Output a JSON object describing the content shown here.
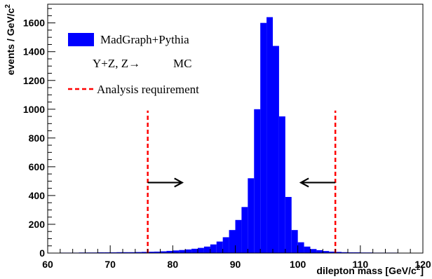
{
  "chart_data": {
    "type": "bar",
    "xlabel": "dilepton mass [GeV/c",
    "xlabel_sup": "2",
    "xlabel_end": "]",
    "ylabel": "events / GeV/c",
    "ylabel_sup": "2",
    "xlim": [
      60,
      120
    ],
    "ylim": [
      0,
      1730
    ],
    "x_ticks": [
      "60",
      "70",
      "80",
      "90",
      "100",
      "110",
      "120"
    ],
    "y_ticks": [
      "0",
      "200",
      "400",
      "600",
      "800",
      "1000",
      "1200",
      "1400",
      "1600"
    ],
    "bin_width": 1,
    "bin_start": 60,
    "values": [
      2,
      2,
      3,
      3,
      3,
      4,
      4,
      4,
      5,
      5,
      5,
      6,
      6,
      6,
      7,
      8,
      9,
      10,
      12,
      15,
      18,
      21,
      25,
      30,
      36,
      45,
      60,
      80,
      110,
      160,
      230,
      320,
      520,
      1000,
      1600,
      1640,
      1440,
      950,
      390,
      160,
      75,
      45,
      28,
      20,
      14,
      10,
      8,
      6,
      5,
      5,
      4,
      4,
      3,
      3,
      3,
      3,
      2,
      2,
      2,
      2
    ],
    "series_name": "MadGraph+Pythia",
    "series_color": "#0000ff",
    "legend_line2": "Y+Z, Z→",
    "legend_line2_mc": "MC",
    "cut_name": "Analysis requirement",
    "cut_color": "#ff0000",
    "cuts": [
      76,
      106
    ],
    "arrow_level": 490,
    "arrows": [
      {
        "from": 76,
        "to": 81.5
      },
      {
        "from": 106,
        "to": 100.5
      }
    ]
  }
}
